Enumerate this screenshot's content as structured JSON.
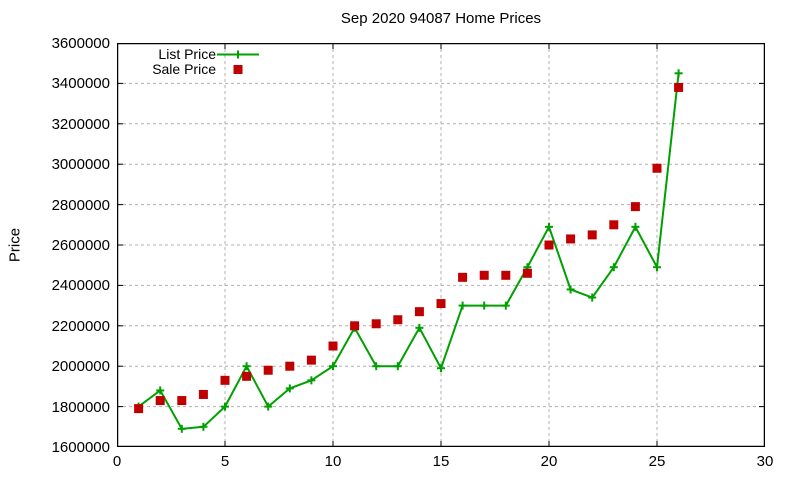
{
  "title": "Sep 2020 94087 Home Prices",
  "y_axis_title": "Price",
  "legend": {
    "items": [
      {
        "label": "List Price",
        "marker": "line-plus",
        "color": "#00a000"
      },
      {
        "label": "Sale Price",
        "marker": "square",
        "color": "#c00000"
      }
    ]
  },
  "chart_data": {
    "type": "line",
    "title": "Sep 2020 94087 Home Prices",
    "xlabel": "",
    "ylabel": "Price",
    "xlim": [
      0,
      30
    ],
    "ylim": [
      1600000,
      3600000
    ],
    "x_ticks": [
      0,
      5,
      10,
      15,
      20,
      25,
      30
    ],
    "y_ticks": [
      1600000,
      1800000,
      2000000,
      2200000,
      2400000,
      2600000,
      2800000,
      3000000,
      3200000,
      3400000,
      3600000
    ],
    "grid": true,
    "legend_position": "top-left",
    "axis_color": "#000000",
    "grid_color": "#b0b0b0",
    "x": [
      1,
      2,
      3,
      4,
      5,
      6,
      7,
      8,
      9,
      10,
      11,
      12,
      13,
      14,
      15,
      16,
      17,
      18,
      19,
      20,
      21,
      22,
      23,
      24,
      25,
      26
    ],
    "series": [
      {
        "name": "List Price",
        "color": "#00a000",
        "marker": "plus",
        "line": true,
        "values": [
          1800000,
          1880000,
          1690000,
          1700000,
          1800000,
          2000000,
          1800000,
          1890000,
          1930000,
          2000000,
          2190000,
          2000000,
          2000000,
          2190000,
          1990000,
          2300000,
          2300000,
          2300000,
          2490000,
          2690000,
          2380000,
          2340000,
          2490000,
          2690000,
          2490000,
          3450000
        ]
      },
      {
        "name": "Sale Price",
        "color": "#c00000",
        "marker": "square",
        "line": false,
        "values": [
          1790000,
          1830000,
          1830000,
          1860000,
          1930000,
          1950000,
          1980000,
          2000000,
          2030000,
          2100000,
          2200000,
          2210000,
          2230000,
          2270000,
          2310000,
          2440000,
          2450000,
          2450000,
          2460000,
          2600000,
          2630000,
          2650000,
          2700000,
          2790000,
          2980000,
          3380000
        ]
      }
    ]
  }
}
